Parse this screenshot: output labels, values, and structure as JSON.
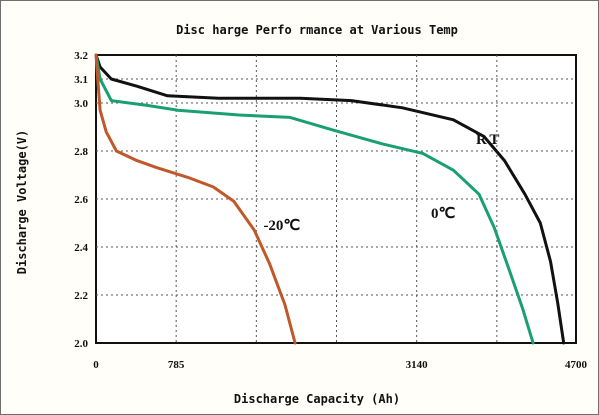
{
  "chart_data": {
    "type": "line",
    "title": "Disc harge Perfo rmance at Various Temp",
    "xlabel": "Discharge Capacity (Ah)",
    "ylabel": "Discharge Voltage(V)",
    "xlim": [
      0,
      4700
    ],
    "ylim": [
      2.0,
      3.2
    ],
    "x_ticks": [
      "0",
      "785",
      "3140",
      "4700"
    ],
    "y_ticks": [
      "2.0",
      "2.2",
      "2.4",
      "2.6",
      "2.8",
      "3.0",
      "3.1",
      "3.2"
    ],
    "grid": true,
    "series": [
      {
        "name": "RT",
        "color": "#111111",
        "points": [
          [
            0,
            3.2
          ],
          [
            40,
            3.15
          ],
          [
            150,
            3.1
          ],
          [
            400,
            3.07
          ],
          [
            700,
            3.03
          ],
          [
            1200,
            3.02
          ],
          [
            2000,
            3.02
          ],
          [
            2500,
            3.01
          ],
          [
            3000,
            2.98
          ],
          [
            3500,
            2.93
          ],
          [
            3800,
            2.86
          ],
          [
            4000,
            2.76
          ],
          [
            4200,
            2.62
          ],
          [
            4350,
            2.5
          ],
          [
            4450,
            2.34
          ],
          [
            4520,
            2.17
          ],
          [
            4580,
            2.0
          ]
        ]
      },
      {
        "name": "0℃",
        "color": "#1aa070",
        "points": [
          [
            0,
            3.2
          ],
          [
            40,
            3.1
          ],
          [
            150,
            3.01
          ],
          [
            500,
            2.99
          ],
          [
            800,
            2.97
          ],
          [
            1400,
            2.95
          ],
          [
            1900,
            2.94
          ],
          [
            2300,
            2.89
          ],
          [
            2800,
            2.83
          ],
          [
            3200,
            2.79
          ],
          [
            3500,
            2.72
          ],
          [
            3750,
            2.62
          ],
          [
            3900,
            2.48
          ],
          [
            4050,
            2.3
          ],
          [
            4180,
            2.14
          ],
          [
            4280,
            2.0
          ]
        ]
      },
      {
        "name": "-20℃",
        "color": "#c0582a",
        "points": [
          [
            0,
            3.2
          ],
          [
            40,
            2.97
          ],
          [
            100,
            2.88
          ],
          [
            200,
            2.8
          ],
          [
            400,
            2.76
          ],
          [
            600,
            2.73
          ],
          [
            900,
            2.69
          ],
          [
            1150,
            2.65
          ],
          [
            1350,
            2.59
          ],
          [
            1550,
            2.47
          ],
          [
            1700,
            2.33
          ],
          [
            1850,
            2.16
          ],
          [
            1950,
            2.0
          ]
        ]
      }
    ]
  }
}
